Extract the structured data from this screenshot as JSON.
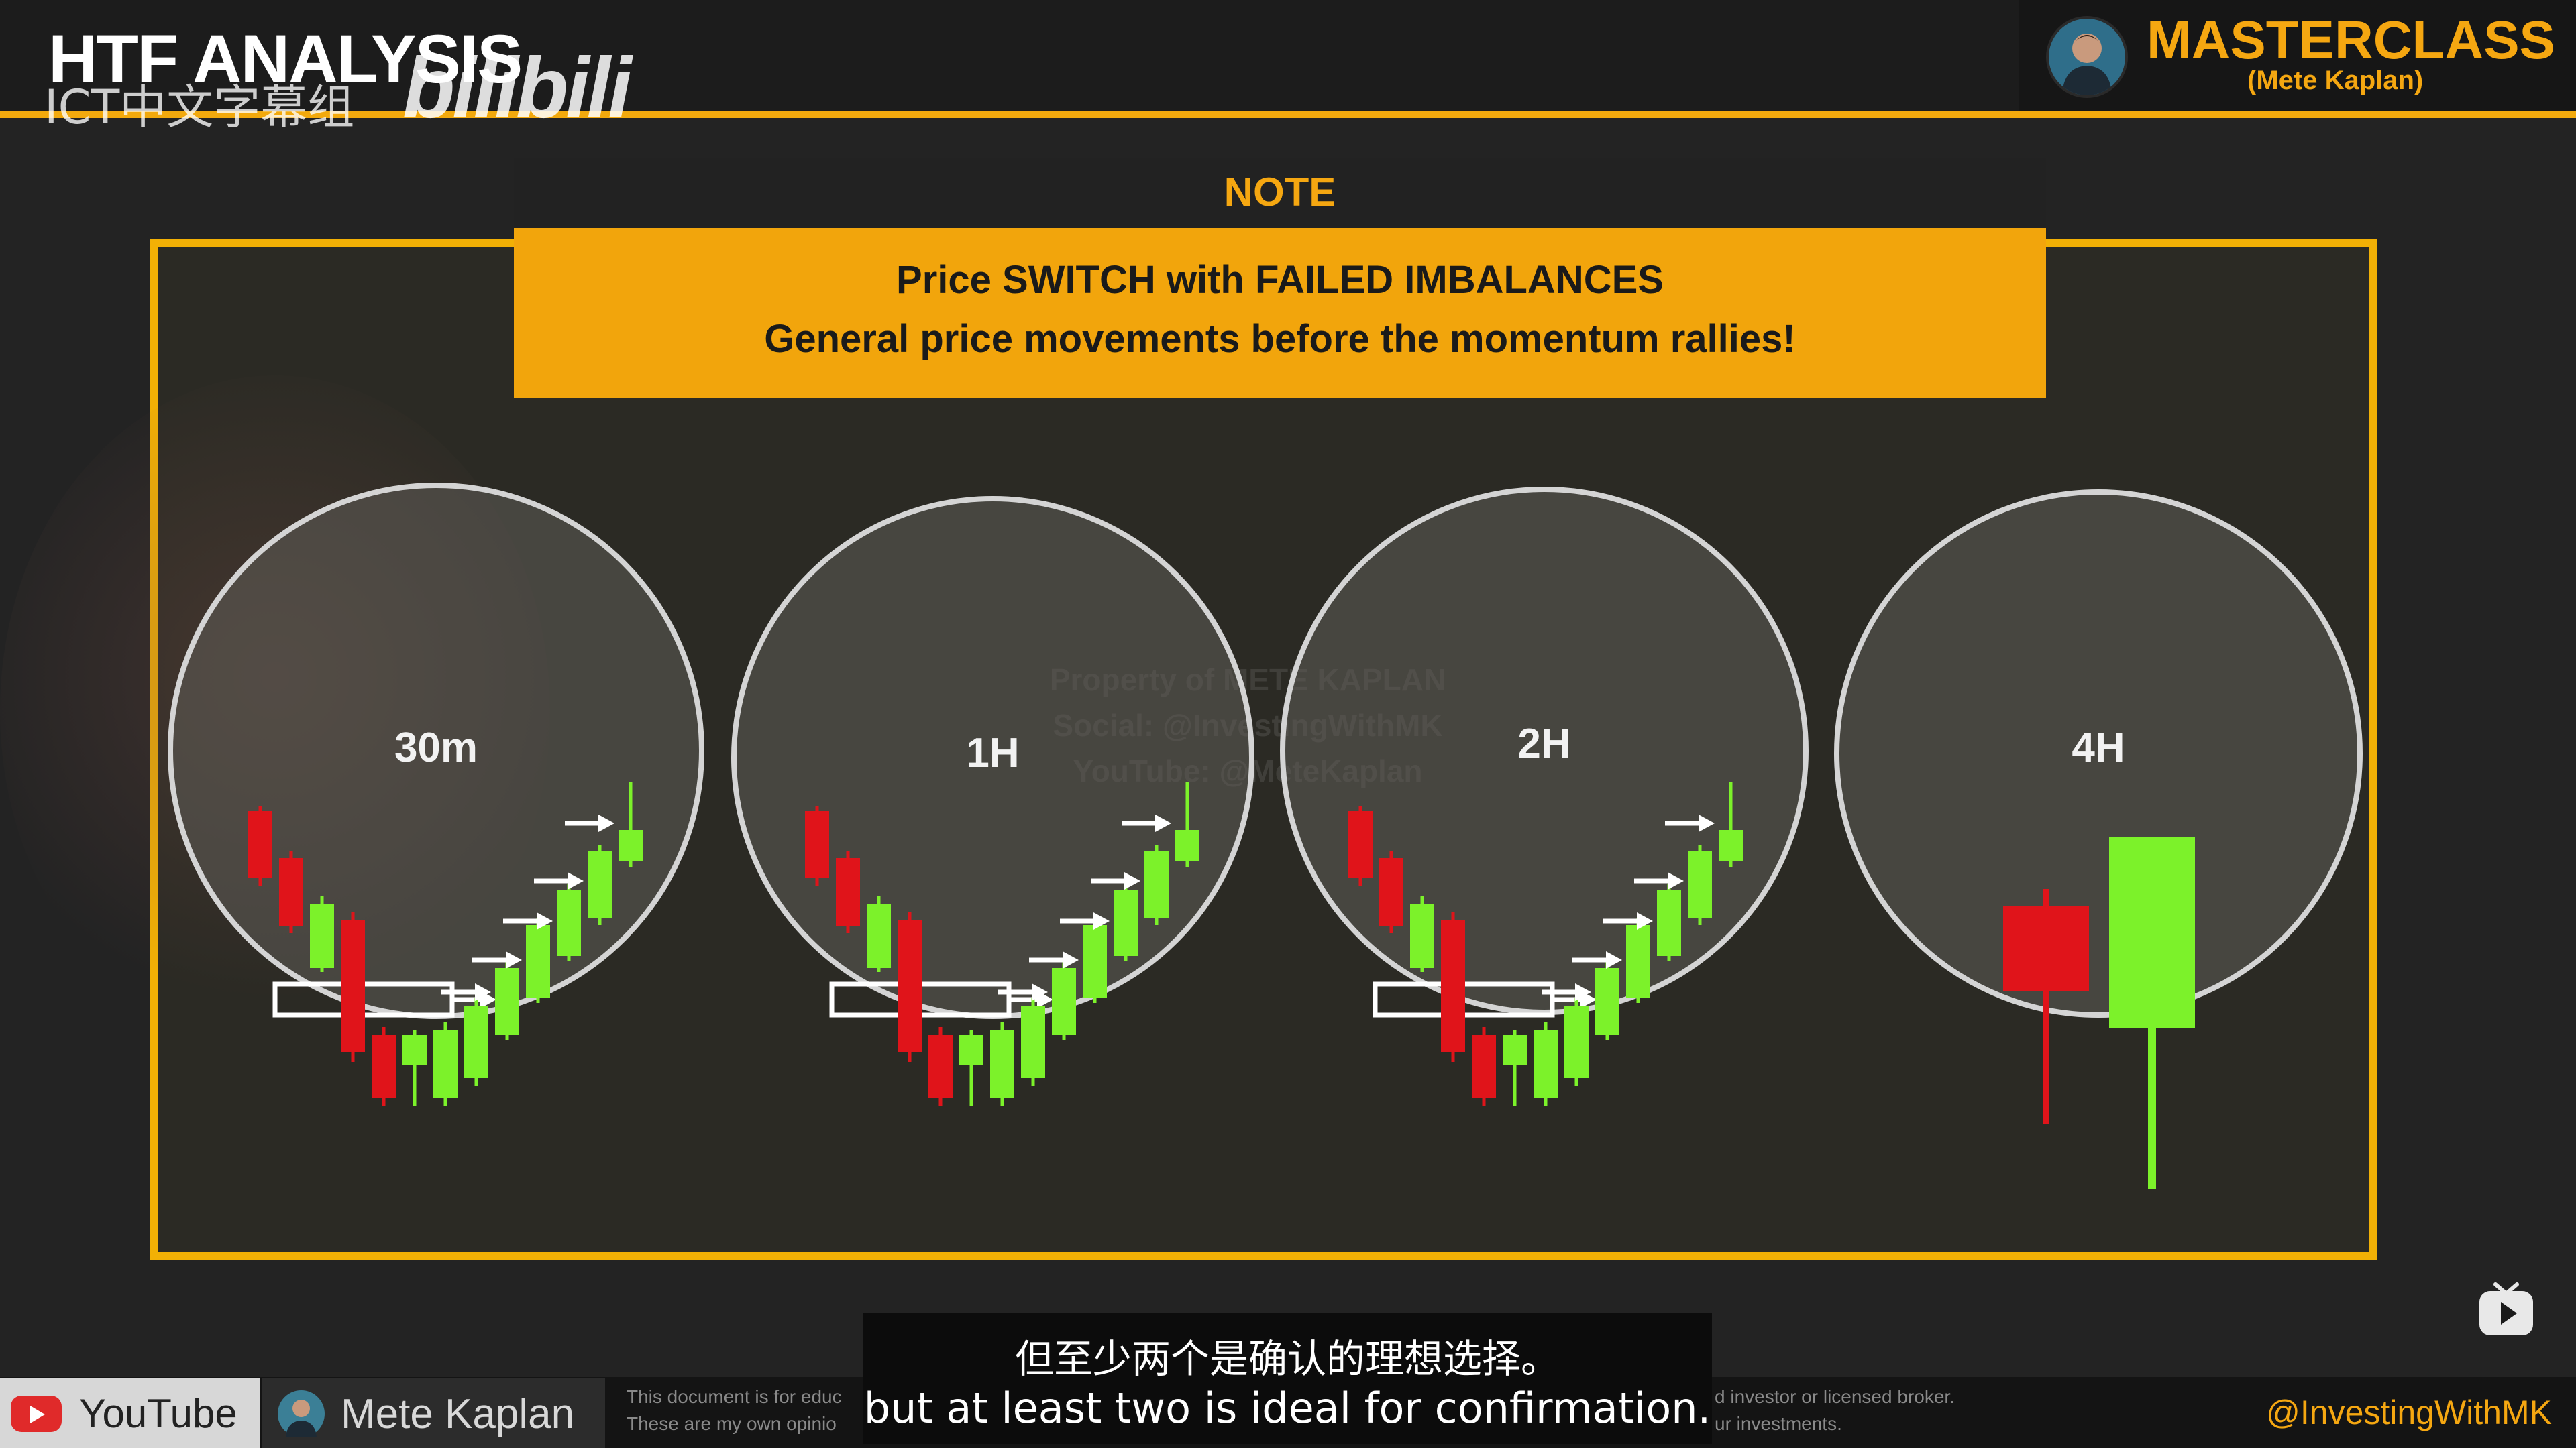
{
  "header": {
    "title": "HTF ANALYSIS",
    "watermark_cn": "ICT中文字幕组",
    "watermark_site": "bilibili",
    "brand": "MASTERCLASS",
    "brand_sub": "(Mete Kaplan)"
  },
  "note": {
    "tab_label": "NOTE",
    "line1": "Price SWITCH with FAILED IMBALANCES",
    "line2": "General price movements before the momentum rallies!"
  },
  "watermark": {
    "line1": "Property of METE KAPLAN",
    "line2": "Social: @InvestingWithMK",
    "line3": "YouTube: @MeteKaplan"
  },
  "timeframes": [
    "30m",
    "1H",
    "2H",
    "4H"
  ],
  "colors": {
    "accent": "#f2a50c",
    "bull": "#7cf22a",
    "bear": "#e0141a",
    "circle_stroke": "#d4d4d4"
  },
  "subtitles": {
    "cn": "但至少两个是确认的理想选择。",
    "en": "but at least two is ideal for confirmation."
  },
  "footer": {
    "youtube": "YouTube",
    "channel": "Mete Kaplan",
    "disclaimer_left_1": "This document is for educ",
    "disclaimer_left_2": "These are my own opinio",
    "disclaimer_right_1": "d investor or licensed broker.",
    "disclaimer_right_2": "ur investments.",
    "handle": "@InvestingWithMK"
  }
}
